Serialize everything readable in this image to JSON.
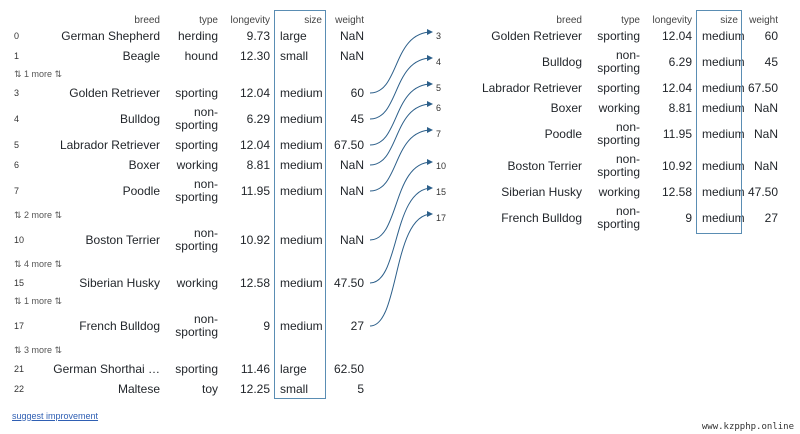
{
  "columns": {
    "breed": "breed",
    "type": "type",
    "longevity": "longevity",
    "size": "size",
    "weight": "weight"
  },
  "left_rows": [
    {
      "kind": "row",
      "idx": "0",
      "breed": "German Shepherd",
      "type": "herding",
      "longevity": "9.73",
      "size": "large",
      "weight": "NaN"
    },
    {
      "kind": "row",
      "idx": "1",
      "breed": "Beagle",
      "type": "hound",
      "longevity": "12.30",
      "size": "small",
      "weight": "NaN"
    },
    {
      "kind": "more",
      "text": "⇅ 1 more ⇅"
    },
    {
      "kind": "row",
      "idx": "3",
      "breed": "Golden Retriever",
      "type": "sporting",
      "longevity": "12.04",
      "size": "medium",
      "weight": "60"
    },
    {
      "kind": "row",
      "idx": "4",
      "breed": "Bulldog",
      "type": "non-sporting",
      "longevity": "6.29",
      "size": "medium",
      "weight": "45"
    },
    {
      "kind": "row",
      "idx": "5",
      "breed": "Labrador Retriever",
      "type": "sporting",
      "longevity": "12.04",
      "size": "medium",
      "weight": "67.50"
    },
    {
      "kind": "row",
      "idx": "6",
      "breed": "Boxer",
      "type": "working",
      "longevity": "8.81",
      "size": "medium",
      "weight": "NaN"
    },
    {
      "kind": "row",
      "idx": "7",
      "breed": "Poodle",
      "type": "non-sporting",
      "longevity": "11.95",
      "size": "medium",
      "weight": "NaN"
    },
    {
      "kind": "more",
      "text": "⇅ 2 more ⇅"
    },
    {
      "kind": "row",
      "idx": "10",
      "breed": "Boston Terrier",
      "type": "non-sporting",
      "longevity": "10.92",
      "size": "medium",
      "weight": "NaN"
    },
    {
      "kind": "more",
      "text": "⇅ 4 more ⇅"
    },
    {
      "kind": "row",
      "idx": "15",
      "breed": "Siberian Husky",
      "type": "working",
      "longevity": "12.58",
      "size": "medium",
      "weight": "47.50"
    },
    {
      "kind": "more",
      "text": "⇅ 1 more ⇅"
    },
    {
      "kind": "row",
      "idx": "17",
      "breed": "French Bulldog",
      "type": "non-sporting",
      "longevity": "9",
      "size": "medium",
      "weight": "27"
    },
    {
      "kind": "more",
      "text": "⇅ 3 more ⇅"
    },
    {
      "kind": "row",
      "idx": "21",
      "breed": "German Shorthai …",
      "type": "sporting",
      "longevity": "11.46",
      "size": "large",
      "weight": "62.50"
    },
    {
      "kind": "row",
      "idx": "22",
      "breed": "Maltese",
      "type": "toy",
      "longevity": "12.25",
      "size": "small",
      "weight": "5"
    }
  ],
  "right_rows": [
    {
      "idx": "3",
      "breed": "Golden Retriever",
      "type": "sporting",
      "longevity": "12.04",
      "size": "medium",
      "weight": "60"
    },
    {
      "idx": "4",
      "breed": "Bulldog",
      "type": "non-sporting",
      "longevity": "6.29",
      "size": "medium",
      "weight": "45"
    },
    {
      "idx": "5",
      "breed": "Labrador Retriever",
      "type": "sporting",
      "longevity": "12.04",
      "size": "medium",
      "weight": "67.50"
    },
    {
      "idx": "6",
      "breed": "Boxer",
      "type": "working",
      "longevity": "8.81",
      "size": "medium",
      "weight": "NaN"
    },
    {
      "idx": "7",
      "breed": "Poodle",
      "type": "non-sporting",
      "longevity": "11.95",
      "size": "medium",
      "weight": "NaN"
    },
    {
      "idx": "10",
      "breed": "Boston Terrier",
      "type": "non-sporting",
      "longevity": "10.92",
      "size": "medium",
      "weight": "NaN"
    },
    {
      "idx": "15",
      "breed": "Siberian Husky",
      "type": "working",
      "longevity": "12.58",
      "size": "medium",
      "weight": "47.50"
    },
    {
      "idx": "17",
      "breed": "French Bulldog",
      "type": "non-sporting",
      "longevity": "9",
      "size": "medium",
      "weight": "27"
    }
  ],
  "footer": {
    "link": "suggest improvement",
    "watermark": "www.kzpphp.online"
  },
  "colors": {
    "accent": "#2c5f8a",
    "highlight_border": "#5a8db3"
  }
}
